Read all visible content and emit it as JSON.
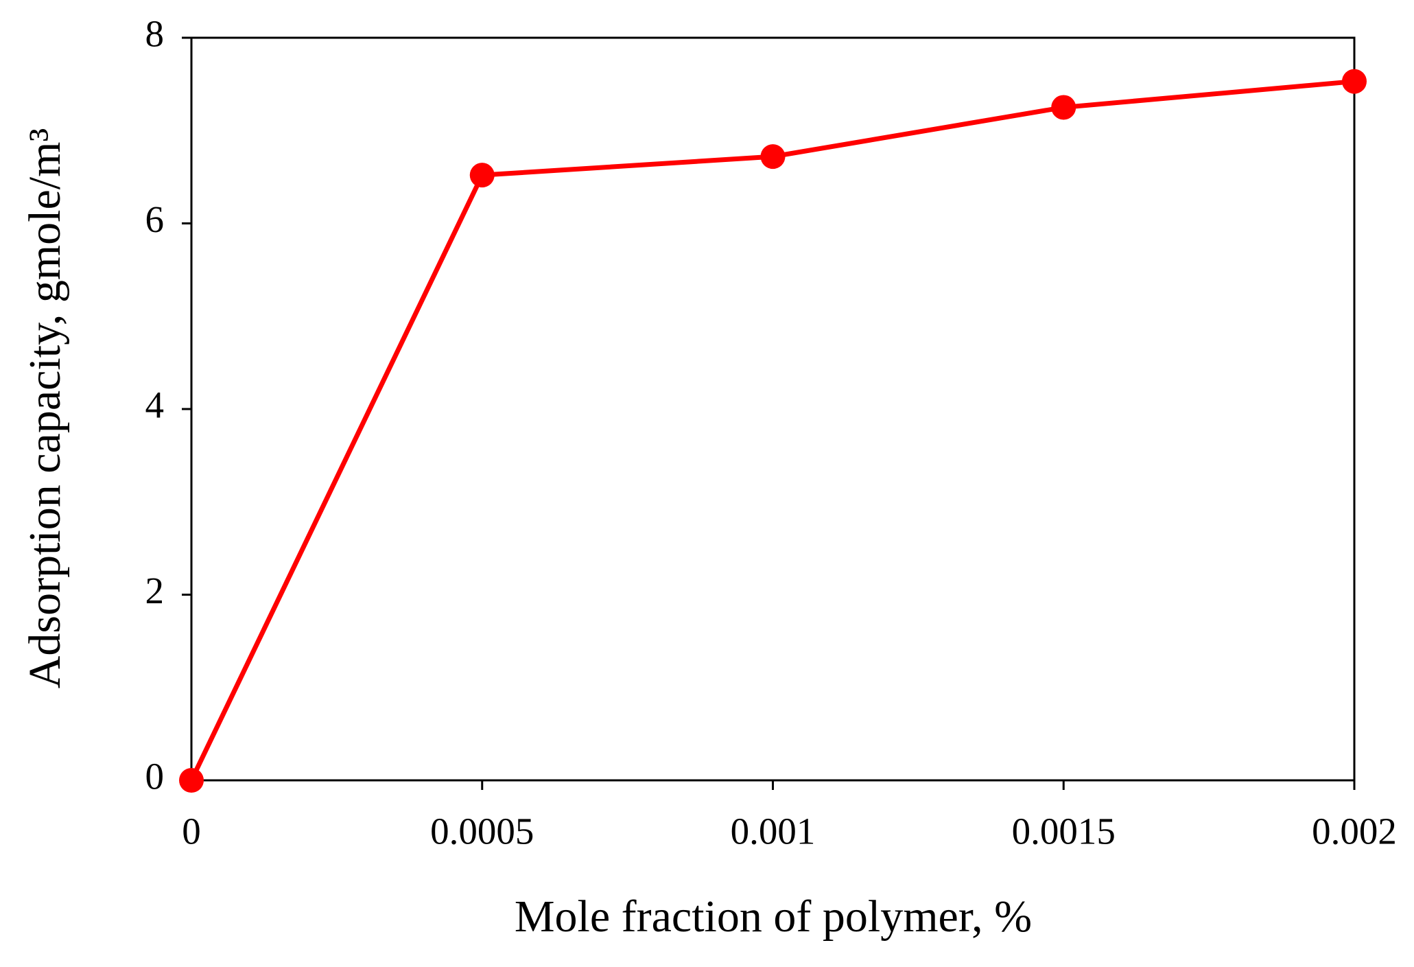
{
  "chart_data": {
    "type": "line",
    "x_label": "Mole fraction of polymer,  %",
    "y_label": "Adsorption capacity,  gmole/m³",
    "x": [
      0,
      0.0005,
      0.001,
      0.0015,
      0.002
    ],
    "values": [
      0,
      6.52,
      6.72,
      7.25,
      7.53
    ],
    "color": "#ff0000",
    "xlim": [
      0,
      0.002
    ],
    "xticks": [
      0,
      0.0005,
      0.001,
      0.0015,
      0.002
    ],
    "ylim": [
      0,
      8
    ],
    "yticks": [
      0,
      2,
      4,
      6,
      8
    ],
    "grid": false
  }
}
